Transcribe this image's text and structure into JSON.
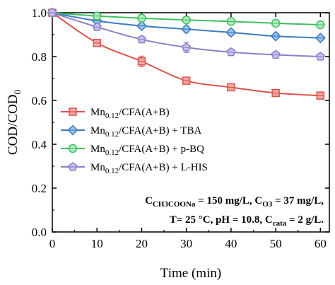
{
  "chart_data": {
    "type": "line",
    "title": "",
    "xlabel": "Time (min)",
    "ylabel": {
      "base": "COD/COD",
      "sub": "0"
    },
    "xlim": [
      0,
      62
    ],
    "ylim": [
      0.0,
      1.0
    ],
    "xticks": [
      "0",
      "10",
      "20",
      "30",
      "40",
      "50",
      "60"
    ],
    "yticks": [
      "0.0",
      "0.2",
      "0.4",
      "0.6",
      "0.8",
      "1.0"
    ],
    "grid": false,
    "legend_position": "bottom-left",
    "series": [
      {
        "name": {
          "base": "Mn",
          "sub": "0.12",
          "rest": "/CFA(A+B)"
        },
        "marker": "square",
        "color": "#d9534f",
        "fill": "#f4a7a3",
        "x": [
          0,
          10,
          20,
          30,
          40,
          50,
          60
        ],
        "y": [
          1.0,
          0.862,
          0.778,
          0.69,
          0.66,
          0.634,
          0.622
        ],
        "err": [
          0,
          0.012,
          0.024,
          0.014,
          0.012,
          0.014,
          0.012
        ]
      },
      {
        "name": {
          "base": "Mn",
          "sub": "0.12",
          "rest": "/CFA(A+B) + TBA"
        },
        "marker": "diamond",
        "color": "#3a7cc2",
        "fill": "#9ec3ea",
        "x": [
          0,
          10,
          20,
          30,
          40,
          50,
          60
        ],
        "y": [
          1.0,
          0.963,
          0.94,
          0.925,
          0.91,
          0.893,
          0.885
        ],
        "err": [
          0,
          0.01,
          0.012,
          0.014,
          0.012,
          0.01,
          0.01
        ]
      },
      {
        "name": {
          "base": "Mn",
          "sub": "0.12",
          "rest": "/CFA(A+B) + p-BQ"
        },
        "marker": "circle",
        "color": "#3fbf5f",
        "fill": "#b5ecc2",
        "x": [
          0,
          10,
          20,
          30,
          40,
          50,
          60
        ],
        "y": [
          1.0,
          0.985,
          0.975,
          0.967,
          0.96,
          0.952,
          0.945
        ],
        "err": [
          0,
          0.008,
          0.01,
          0.008,
          0.008,
          0.008,
          0.008
        ]
      },
      {
        "name": {
          "base": "Mn",
          "sub": "0.12",
          "rest": "/CFA(A+B) + L-HIS"
        },
        "marker": "pentagon",
        "color": "#8a7fc8",
        "fill": "#c9c2ec",
        "x": [
          0,
          10,
          20,
          30,
          40,
          50,
          60
        ],
        "y": [
          1.0,
          0.935,
          0.878,
          0.842,
          0.82,
          0.808,
          0.8
        ],
        "err": [
          0,
          0.012,
          0.014,
          0.024,
          0.014,
          0.012,
          0.01
        ]
      }
    ],
    "annotations": {
      "line1": [
        {
          "t": "C"
        },
        {
          "t": "CH3COONa",
          "sub": true
        },
        {
          "t": " = 150 mg/L, C"
        },
        {
          "t": "O3",
          "sub": true
        },
        {
          "t": " = 37 mg/L,"
        }
      ],
      "line2": [
        {
          "t": "T= 25 °C, pH = 10.8, C"
        },
        {
          "t": "cata",
          "sub": true
        },
        {
          "t": " = 2 g/L."
        }
      ]
    }
  }
}
